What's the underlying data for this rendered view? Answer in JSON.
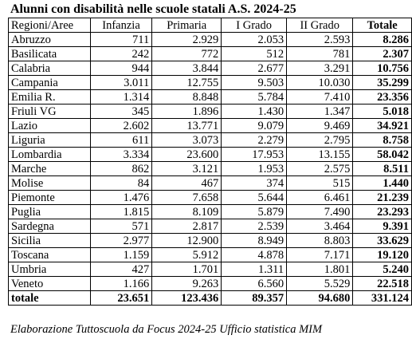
{
  "title": "Alunni con disabilità nelle scuole statali A.S. 2024-25",
  "headers": {
    "region": "Regioni/Aree",
    "infanzia": "Infanzia",
    "primaria": "Primaria",
    "primo_grado": "I Grado",
    "secondo_grado": "II Grado",
    "totale": "Totale"
  },
  "rows": [
    {
      "region": "Abruzzo",
      "infanzia": "711",
      "primaria": "2.929",
      "primo_grado": "2.053",
      "secondo_grado": "2.593",
      "totale": "8.286"
    },
    {
      "region": "Basilicata",
      "infanzia": "242",
      "primaria": "772",
      "primo_grado": "512",
      "secondo_grado": "781",
      "totale": "2.307"
    },
    {
      "region": "Calabria",
      "infanzia": "944",
      "primaria": "3.844",
      "primo_grado": "2.677",
      "secondo_grado": "3.291",
      "totale": "10.756"
    },
    {
      "region": "Campania",
      "infanzia": "3.011",
      "primaria": "12.755",
      "primo_grado": "9.503",
      "secondo_grado": "10.030",
      "totale": "35.299"
    },
    {
      "region": "Emilia R.",
      "infanzia": "1.314",
      "primaria": "8.848",
      "primo_grado": "5.784",
      "secondo_grado": "7.410",
      "totale": "23.356"
    },
    {
      "region": "Friuli VG",
      "infanzia": "345",
      "primaria": "1.896",
      "primo_grado": "1.430",
      "secondo_grado": "1.347",
      "totale": "5.018"
    },
    {
      "region": "Lazio",
      "infanzia": "2.602",
      "primaria": "13.771",
      "primo_grado": "9.079",
      "secondo_grado": "9.469",
      "totale": "34.921"
    },
    {
      "region": "Liguria",
      "infanzia": "611",
      "primaria": "3.073",
      "primo_grado": "2.279",
      "secondo_grado": "2.795",
      "totale": "8.758"
    },
    {
      "region": "Lombardia",
      "infanzia": "3.334",
      "primaria": "23.600",
      "primo_grado": "17.953",
      "secondo_grado": "13.155",
      "totale": "58.042"
    },
    {
      "region": "Marche",
      "infanzia": "862",
      "primaria": "3.121",
      "primo_grado": "1.953",
      "secondo_grado": "2.575",
      "totale": "8.511"
    },
    {
      "region": "Molise",
      "infanzia": "84",
      "primaria": "467",
      "primo_grado": "374",
      "secondo_grado": "515",
      "totale": "1.440"
    },
    {
      "region": "Piemonte",
      "infanzia": "1.476",
      "primaria": "7.658",
      "primo_grado": "5.644",
      "secondo_grado": "6.461",
      "totale": "21.239"
    },
    {
      "region": "Puglia",
      "infanzia": "1.815",
      "primaria": "8.109",
      "primo_grado": "5.879",
      "secondo_grado": "7.490",
      "totale": "23.293"
    },
    {
      "region": "Sardegna",
      "infanzia": "571",
      "primaria": "2.817",
      "primo_grado": "2.539",
      "secondo_grado": "3.464",
      "totale": "9.391"
    },
    {
      "region": "Sicilia",
      "infanzia": "2.977",
      "primaria": "12.900",
      "primo_grado": "8.949",
      "secondo_grado": "8.803",
      "totale": "33.629"
    },
    {
      "region": "Toscana",
      "infanzia": "1.159",
      "primaria": "5.912",
      "primo_grado": "4.878",
      "secondo_grado": "7.171",
      "totale": "19.120"
    },
    {
      "region": "Umbria",
      "infanzia": "427",
      "primaria": "1.701",
      "primo_grado": "1.311",
      "secondo_grado": "1.801",
      "totale": "5.240"
    },
    {
      "region": "Veneto",
      "infanzia": "1.166",
      "primaria": "9.263",
      "primo_grado": "6.560",
      "secondo_grado": "5.529",
      "totale": "22.518"
    }
  ],
  "totals": {
    "region": "totale",
    "infanzia": "23.651",
    "primaria": "123.436",
    "primo_grado": "89.357",
    "secondo_grado": "94.680",
    "totale": "331.124"
  },
  "source": "Elaborazione Tuttoscuola da Focus 2024-25 Ufficio statistica MIM"
}
